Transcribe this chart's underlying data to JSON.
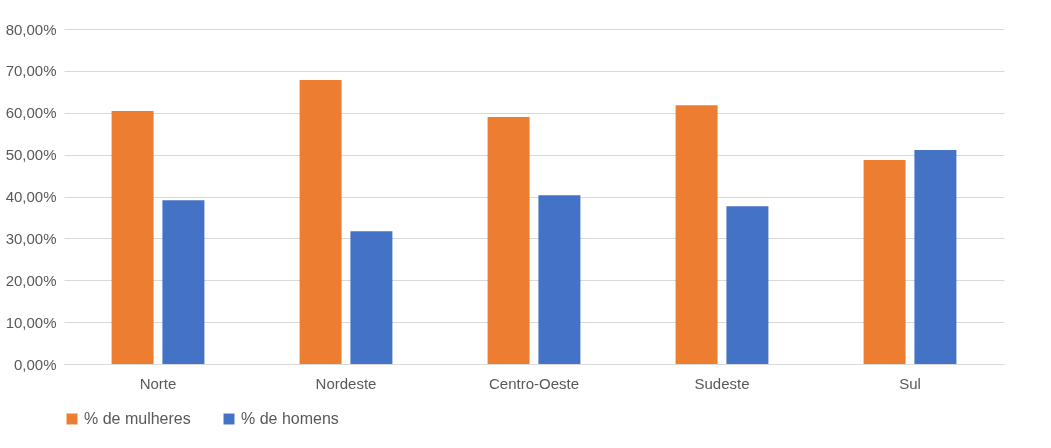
{
  "chart_data": {
    "type": "bar",
    "categories": [
      "Norte",
      "Nordeste",
      "Centro-Oeste",
      "Sudeste",
      "Sul"
    ],
    "series": [
      {
        "name": "% de mulheres",
        "color": "#ed7d31",
        "values": [
          60.4,
          67.8,
          59.0,
          61.8,
          48.7
        ]
      },
      {
        "name": "% de homens",
        "color": "#4472c4",
        "values": [
          39.1,
          31.7,
          40.3,
          37.7,
          51.1
        ]
      }
    ],
    "ylim": [
      0,
      80
    ],
    "yticks": [
      {
        "value": 0,
        "label": "0,00%"
      },
      {
        "value": 10,
        "label": "10,00%"
      },
      {
        "value": 20,
        "label": "20,00%"
      },
      {
        "value": 30,
        "label": "30,00%"
      },
      {
        "value": 40,
        "label": "40,00%"
      },
      {
        "value": 50,
        "label": "50,00%"
      },
      {
        "value": 60,
        "label": "60,00%"
      },
      {
        "value": 70,
        "label": "70,00%"
      },
      {
        "value": 80,
        "label": "80,00%"
      }
    ],
    "grid": "y",
    "legend": "bottom"
  }
}
